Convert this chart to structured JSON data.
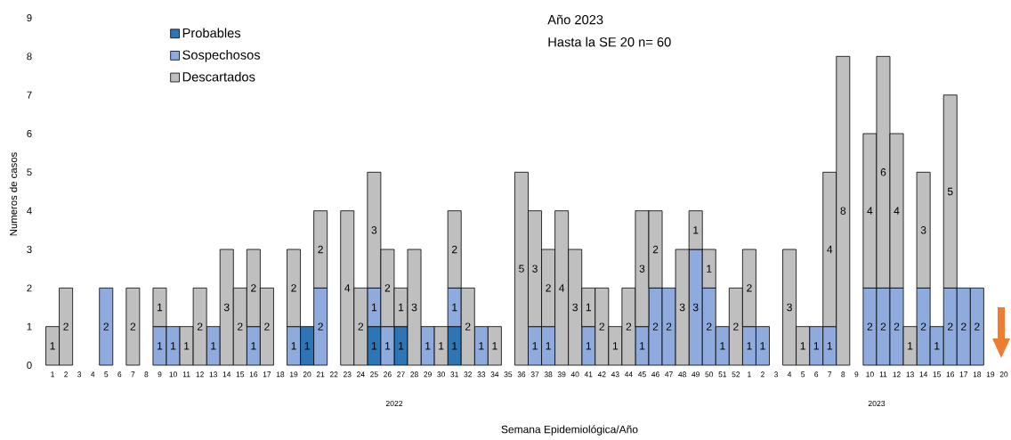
{
  "chart_data": {
    "type": "bar",
    "stacked": true,
    "data_labels": true,
    "legend": "top left",
    "grid": false,
    "ylabel": "Numeros de casos",
    "xlabel": "Semana Epidemiológica/Año",
    "annotations": [
      "Año 2023",
      "Hasta la SE 20 n= 60",
      "2022",
      "2023"
    ],
    "ylim": [
      0,
      9
    ],
    "yticks": [
      0,
      1,
      2,
      3,
      4,
      5,
      6,
      7,
      8,
      9
    ],
    "categories": [
      "1",
      "2",
      "3",
      "4",
      "5",
      "6",
      "7",
      "8",
      "9",
      "10",
      "11",
      "12",
      "13",
      "14",
      "15",
      "16",
      "17",
      "18",
      "19",
      "20",
      "21",
      "22",
      "23",
      "24",
      "25",
      "26",
      "27",
      "28",
      "29",
      "30",
      "31",
      "32",
      "33",
      "34",
      "35",
      "36",
      "37",
      "38",
      "39",
      "40",
      "41",
      "42",
      "43",
      "44",
      "45",
      "46",
      "47",
      "48",
      "49",
      "50",
      "51",
      "52",
      "1",
      "2",
      "3",
      "4",
      "5",
      "6",
      "7",
      "8",
      "9",
      "10",
      "11",
      "12",
      "13",
      "14",
      "15",
      "16",
      "17",
      "18",
      "19",
      "20"
    ],
    "series": [
      {
        "name": "Probables",
        "color": "#2e75b6",
        "values": [
          null,
          null,
          null,
          null,
          null,
          null,
          null,
          null,
          null,
          null,
          null,
          null,
          null,
          null,
          null,
          null,
          null,
          null,
          null,
          1,
          null,
          null,
          null,
          null,
          1,
          null,
          1,
          null,
          null,
          null,
          1,
          null,
          null,
          null,
          null,
          null,
          null,
          null,
          null,
          null,
          null,
          null,
          null,
          null,
          null,
          null,
          null,
          null,
          null,
          null,
          null,
          null,
          null,
          null,
          null,
          null,
          null,
          null,
          null,
          null,
          null,
          null,
          null,
          null,
          null,
          null,
          null,
          null,
          null,
          null,
          null,
          null
        ]
      },
      {
        "name": "Sospechosos",
        "color": "#8faadc",
        "values": [
          null,
          null,
          null,
          null,
          2,
          null,
          null,
          null,
          1,
          1,
          null,
          null,
          1,
          null,
          null,
          1,
          null,
          null,
          1,
          null,
          2,
          null,
          null,
          null,
          1,
          1,
          null,
          null,
          1,
          null,
          1,
          null,
          1,
          null,
          null,
          null,
          1,
          1,
          null,
          null,
          1,
          null,
          null,
          null,
          1,
          2,
          2,
          null,
          3,
          2,
          1,
          null,
          1,
          1,
          null,
          null,
          null,
          1,
          1,
          null,
          null,
          2,
          2,
          2,
          null,
          2,
          1,
          2,
          2,
          2,
          null,
          null
        ]
      },
      {
        "name": "Descartados",
        "color": "#bfbfbf",
        "values": [
          1,
          2,
          null,
          null,
          null,
          null,
          2,
          null,
          1,
          null,
          1,
          2,
          null,
          3,
          2,
          2,
          2,
          null,
          2,
          null,
          2,
          null,
          4,
          2,
          3,
          2,
          1,
          3,
          null,
          1,
          2,
          2,
          null,
          1,
          null,
          5,
          3,
          2,
          4,
          3,
          1,
          2,
          1,
          2,
          3,
          2,
          null,
          3,
          1,
          1,
          null,
          2,
          2,
          null,
          null,
          3,
          1,
          null,
          4,
          8,
          null,
          4,
          6,
          4,
          1,
          3,
          null,
          5,
          null,
          null,
          null,
          null
        ]
      }
    ]
  }
}
